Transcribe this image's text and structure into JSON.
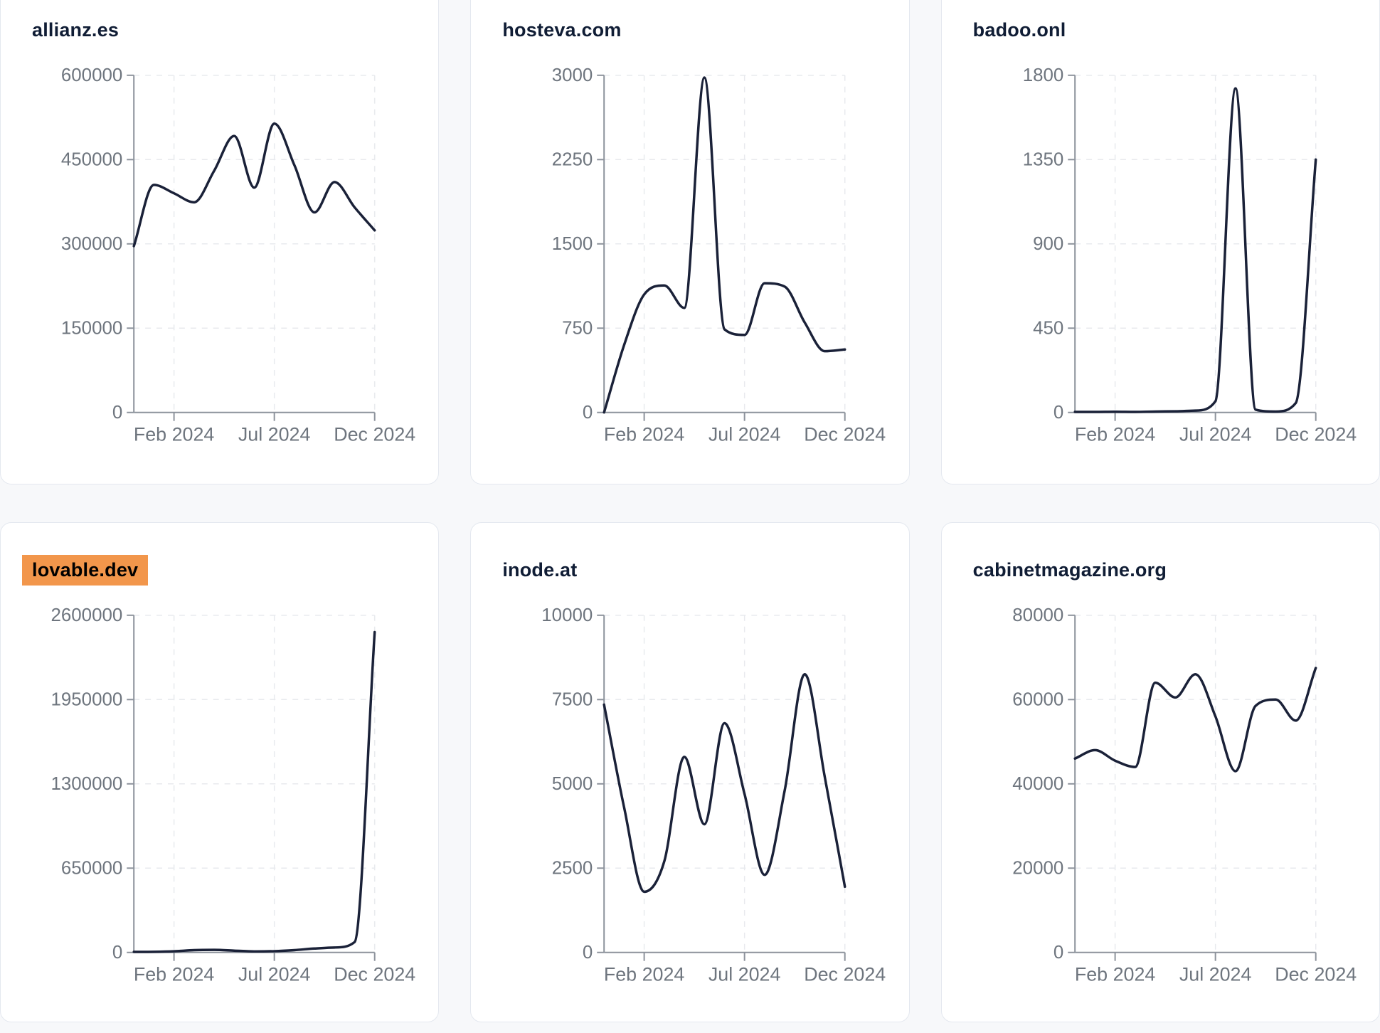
{
  "page": {
    "background": "#f7f8fa",
    "card_background": "#ffffff",
    "card_border": "#e4e8ef"
  },
  "colors": {
    "line": "#1a2138",
    "title": "#101d35",
    "tick_label": "#6e757e",
    "axis": "#8d939c",
    "grid": "#e8eaee",
    "highlight_bg": "#f2964b",
    "highlight_text": "#000000"
  },
  "chart_data": [
    {
      "type": "line",
      "title": "allianz.es",
      "highlighted": false,
      "x": [
        "Dec 2023",
        "Jan 2024",
        "Feb 2024",
        "Mar 2024",
        "Apr 2024",
        "May 2024",
        "Jun 2024",
        "Jul 2024",
        "Aug 2024",
        "Sep 2024",
        "Oct 2024",
        "Nov 2024",
        "Dec 2024"
      ],
      "values": [
        296000,
        405000,
        390000,
        374000,
        430000,
        492000,
        400000,
        514000,
        440000,
        356000,
        410000,
        365000,
        324000
      ],
      "y_ticks": [
        0,
        150000,
        300000,
        450000,
        600000
      ],
      "ylim": [
        0,
        600000
      ],
      "x_tick_labels": [
        "Feb 2024",
        "Jul 2024",
        "Dec 2024"
      ],
      "x_tick_indices": [
        2,
        7,
        12
      ],
      "grid": true,
      "legend": "none"
    },
    {
      "type": "line",
      "title": "hosteva.com",
      "highlighted": false,
      "x": [
        "Dec 2023",
        "Jan 2024",
        "Feb 2024",
        "Mar 2024",
        "Apr 2024",
        "May 2024",
        "Jun 2024",
        "Jul 2024",
        "Aug 2024",
        "Sep 2024",
        "Oct 2024",
        "Nov 2024",
        "Dec 2024"
      ],
      "values": [
        0,
        600,
        1050,
        1130,
        930,
        2980,
        740,
        690,
        1150,
        1120,
        800,
        545,
        560
      ],
      "y_ticks": [
        0,
        750,
        1500,
        2250,
        3000
      ],
      "ylim": [
        0,
        3000
      ],
      "x_tick_labels": [
        "Feb 2024",
        "Jul 2024",
        "Dec 2024"
      ],
      "x_tick_indices": [
        2,
        7,
        12
      ],
      "grid": true,
      "legend": "none"
    },
    {
      "type": "line",
      "title": "badoo.onl",
      "highlighted": false,
      "x": [
        "Dec 2023",
        "Jan 2024",
        "Feb 2024",
        "Mar 2024",
        "Apr 2024",
        "May 2024",
        "Jun 2024",
        "Jul 2024",
        "Aug 2024",
        "Sep 2024",
        "Oct 2024",
        "Nov 2024",
        "Dec 2024"
      ],
      "values": [
        3,
        3,
        4,
        3,
        5,
        6,
        10,
        60,
        1730,
        15,
        5,
        50,
        1350
      ],
      "y_ticks": [
        0,
        450,
        900,
        1350,
        1800
      ],
      "ylim": [
        0,
        1800
      ],
      "x_tick_labels": [
        "Feb 2024",
        "Jul 2024",
        "Dec 2024"
      ],
      "x_tick_indices": [
        2,
        7,
        12
      ],
      "grid": true,
      "legend": "none"
    },
    {
      "type": "line",
      "title": "lovable.dev",
      "highlighted": true,
      "x": [
        "Dec 2023",
        "Jan 2024",
        "Feb 2024",
        "Mar 2024",
        "Apr 2024",
        "May 2024",
        "Jun 2024",
        "Jul 2024",
        "Aug 2024",
        "Sep 2024",
        "Oct 2024",
        "Nov 2024",
        "Dec 2024"
      ],
      "values": [
        4000,
        5000,
        9000,
        18000,
        20000,
        14000,
        8000,
        10000,
        18000,
        30000,
        38000,
        80000,
        2470000
      ],
      "y_ticks": [
        0,
        650000,
        1300000,
        1950000,
        2600000
      ],
      "ylim": [
        0,
        2600000
      ],
      "x_tick_labels": [
        "Feb 2024",
        "Jul 2024",
        "Dec 2024"
      ],
      "x_tick_indices": [
        2,
        7,
        12
      ],
      "grid": true,
      "legend": "none"
    },
    {
      "type": "line",
      "title": "inode.at",
      "highlighted": false,
      "x": [
        "Dec 2023",
        "Jan 2024",
        "Feb 2024",
        "Mar 2024",
        "Apr 2024",
        "May 2024",
        "Jun 2024",
        "Jul 2024",
        "Aug 2024",
        "Sep 2024",
        "Oct 2024",
        "Nov 2024",
        "Dec 2024"
      ],
      "values": [
        7350,
        4300,
        1800,
        2700,
        5800,
        3800,
        6800,
        4700,
        2300,
        4800,
        8250,
        5200,
        1950
      ],
      "y_ticks": [
        0,
        2500,
        5000,
        7500,
        10000
      ],
      "ylim": [
        0,
        10000
      ],
      "x_tick_labels": [
        "Feb 2024",
        "Jul 2024",
        "Dec 2024"
      ],
      "x_tick_indices": [
        2,
        7,
        12
      ],
      "grid": true,
      "legend": "none"
    },
    {
      "type": "line",
      "title": "cabinetmagazine.org",
      "highlighted": false,
      "x": [
        "Dec 2023",
        "Jan 2024",
        "Feb 2024",
        "Mar 2024",
        "Apr 2024",
        "May 2024",
        "Jun 2024",
        "Jul 2024",
        "Aug 2024",
        "Sep 2024",
        "Oct 2024",
        "Nov 2024",
        "Dec 2024"
      ],
      "values": [
        46000,
        48000,
        45500,
        44000,
        64000,
        60500,
        66000,
        56000,
        43000,
        58500,
        60000,
        55000,
        67500
      ],
      "y_ticks": [
        0,
        20000,
        40000,
        60000,
        80000
      ],
      "ylim": [
        0,
        80000
      ],
      "x_tick_labels": [
        "Feb 2024",
        "Jul 2024",
        "Dec 2024"
      ],
      "x_tick_indices": [
        2,
        7,
        12
      ],
      "grid": true,
      "legend": "none"
    }
  ]
}
